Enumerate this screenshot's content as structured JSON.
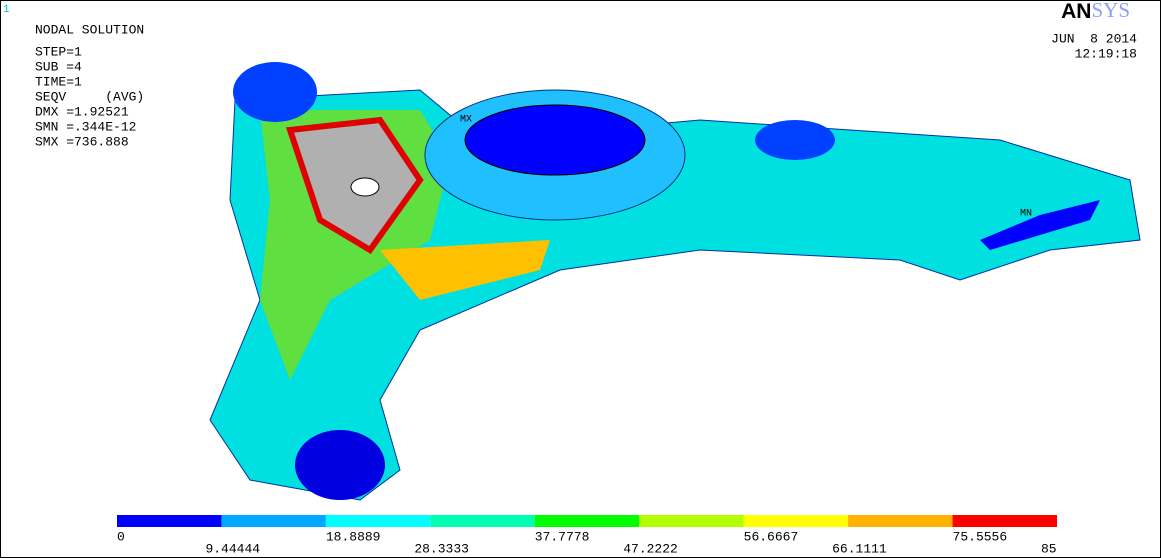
{
  "window_number": "1",
  "header": {
    "title": "NODAL SOLUTION",
    "lines": [
      "STEP=1",
      "SUB =4",
      "TIME=1",
      "SEQV     (AVG)",
      "DMX =1.92521",
      "SMN =.344E-12",
      "SMX =736.888"
    ]
  },
  "logo": {
    "bold": "AN",
    "light": "SYS"
  },
  "date": "JUN  8 2014",
  "time": "12:19:18",
  "markers": [
    "MX",
    "MN"
  ],
  "legend": {
    "colors": [
      "#0000ff",
      "#00a8ff",
      "#00ffff",
      "#00ffb2",
      "#00ff00",
      "#b2ff00",
      "#ffff00",
      "#ffb200",
      "#ff0000"
    ],
    "labels": [
      "0",
      "9.44444",
      "18.8889",
      "28.3333",
      "37.7778",
      "47.2222",
      "56.6667",
      "66.1111",
      "75.5556",
      "85"
    ]
  }
}
